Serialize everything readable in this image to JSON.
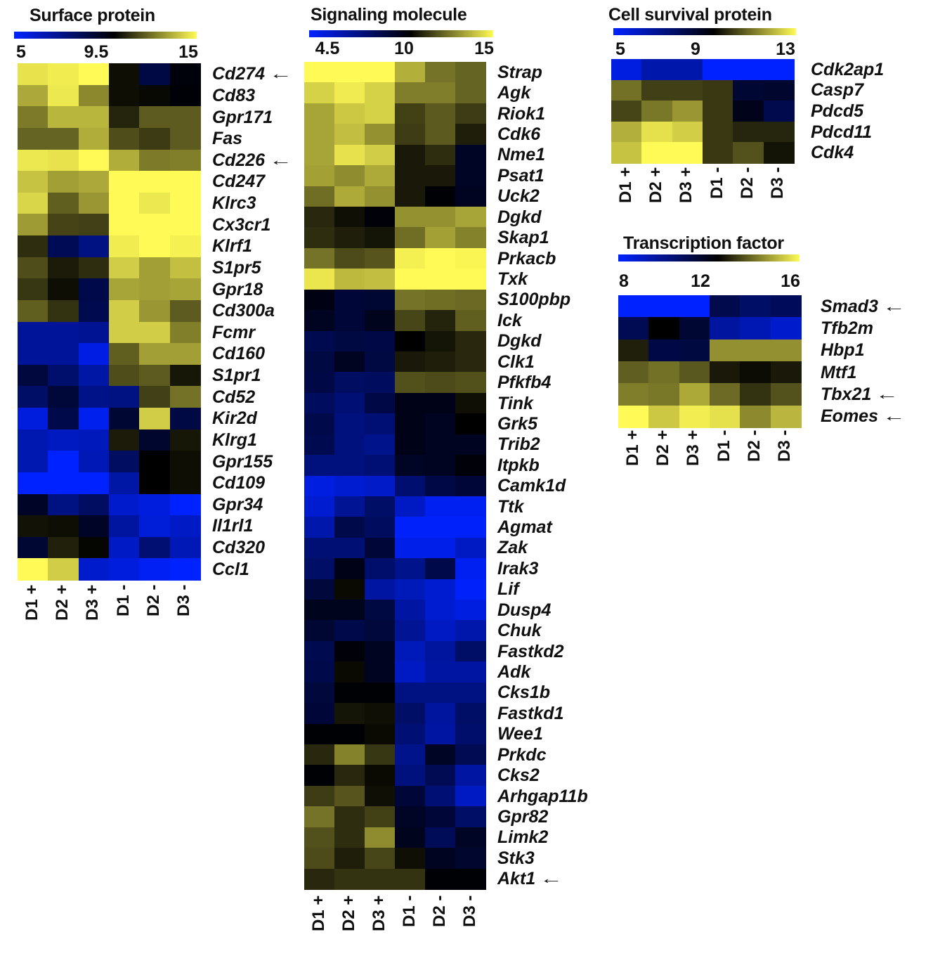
{
  "chart_data": [
    {
      "type": "heatmap",
      "id": "surface",
      "title": "Surface protein",
      "scale": {
        "min": 5,
        "mid": 9.5,
        "max": 15,
        "tick_labels": [
          "5",
          "9.5",
          "15"
        ]
      },
      "columns": [
        "D1 +",
        "D2 +",
        "D3 +",
        "D1 -",
        "D2 -",
        "D3 -"
      ],
      "rows": [
        "Cd274",
        "Cd83",
        "Gpr171",
        "Fas",
        "Cd226",
        "Cd247",
        "Klrc3",
        "Cx3cr1",
        "Klrf1",
        "S1pr5",
        "Gpr18",
        "Cd300a",
        "Fcmr",
        "Cd160",
        "S1pr1",
        "Cd52",
        "Kir2d",
        "Klrg1",
        "Gpr155",
        "Cd109",
        "Gpr34",
        "Il1rl1",
        "Cd320",
        "Ccl1"
      ],
      "arrows": [
        "Cd274",
        "Cd226"
      ],
      "values": [
        [
          14.5,
          14.7,
          15,
          9.8,
          8.3,
          9.3
        ],
        [
          13.2,
          14.6,
          12.5,
          9.8,
          9.7,
          9.4
        ],
        [
          12.2,
          13.5,
          13.5,
          10.3,
          11.5,
          11.5
        ],
        [
          11.7,
          11.7,
          13.3,
          11.2,
          10.8,
          11.5
        ],
        [
          14.6,
          14.5,
          15,
          13.3,
          12.2,
          12.3
        ],
        [
          13.8,
          13,
          13.2,
          15,
          15,
          15
        ],
        [
          14.2,
          11.6,
          12.8,
          15,
          14.6,
          15
        ],
        [
          12.9,
          11,
          10.9,
          15,
          15,
          15
        ],
        [
          10.5,
          8.0,
          7.2,
          14.7,
          15,
          14.8
        ],
        [
          11.2,
          10.1,
          10.5,
          14,
          13,
          13.7
        ],
        [
          10.7,
          9.8,
          8.2,
          13.1,
          13,
          13.1
        ],
        [
          11.6,
          10.6,
          8.1,
          14,
          12.8,
          11.5
        ],
        [
          6.8,
          6.8,
          6.9,
          14,
          14,
          12.3
        ],
        [
          6.8,
          6.8,
          5.5,
          11.6,
          13,
          13
        ],
        [
          8.4,
          7.6,
          6.6,
          11.2,
          11.5,
          10
        ],
        [
          7.7,
          8.5,
          7.1,
          7.2,
          10.9,
          12
        ],
        [
          5.6,
          8.2,
          5.3,
          8.6,
          14,
          8.3
        ],
        [
          6.4,
          6.1,
          6.2,
          10.1,
          8.7,
          10
        ],
        [
          6.4,
          5,
          6.3,
          7.8,
          9.5,
          9.8
        ],
        [
          5,
          5,
          5,
          6.6,
          9.5,
          9.8
        ],
        [
          8.8,
          7.2,
          7.8,
          5.9,
          5.6,
          5
        ],
        [
          9.9,
          9.8,
          8.8,
          6.7,
          5.7,
          6
        ],
        [
          8.6,
          10.2,
          9.6,
          6.0,
          7.5,
          6.3
        ],
        [
          15,
          14,
          5.9,
          5.6,
          5.2,
          5
        ]
      ]
    },
    {
      "type": "heatmap",
      "id": "signaling",
      "title": "Signaling molecule",
      "scale": {
        "min": 4.5,
        "mid": 10,
        "max": 15,
        "tick_labels": [
          "4.5",
          "10",
          "15"
        ]
      },
      "columns": [
        "D1 +",
        "D2 +",
        "D3 +",
        "D1 -",
        "D2 -",
        "D3 -"
      ],
      "rows": [
        "Strap",
        "Agk",
        "Riok1",
        "Cdk6",
        "Nme1",
        "Psat1",
        "Uck2",
        "Dgkd",
        "Skap1",
        "Prkacb",
        "Txk",
        "S100pbp",
        "Ick",
        "Dgkd",
        "Clk1",
        "Pfkfb4",
        "Tink",
        "Grk5",
        "Trib2",
        "Itpkb",
        "Camk1d",
        "Ttk",
        "Agmat",
        "Zak",
        "Irak3",
        "Lif",
        "Dusp4",
        "Chuk",
        "Fastkd2",
        "Adk",
        "Cks1b",
        "Fastkd1",
        "Wee1",
        "Prkdc",
        "Cks2",
        "Arhgap11b",
        "Gpr82",
        "Limk2",
        "Stk3",
        "Akt1"
      ],
      "arrows": [
        "Akt1"
      ],
      "values": [
        [
          15,
          15,
          15,
          13.5,
          12.3,
          12
        ],
        [
          14.2,
          14.7,
          14.2,
          12.5,
          12.5,
          12
        ],
        [
          13.3,
          14,
          14.2,
          11.3,
          11.8,
          11.2
        ],
        [
          13.3,
          13.8,
          12.9,
          11.2,
          11.8,
          10.6
        ],
        [
          13.3,
          14.5,
          14.1,
          10.5,
          10.9,
          9.2
        ],
        [
          13.2,
          12.8,
          13.4,
          10.5,
          10.5,
          9.2
        ],
        [
          12.2,
          13.4,
          12.9,
          10.5,
          9.9,
          9.3
        ],
        [
          10.8,
          10.3,
          9.8,
          12.9,
          12.9,
          13.3
        ],
        [
          10.9,
          10.6,
          10.4,
          12.2,
          13.2,
          12.6
        ],
        [
          12.3,
          11.5,
          11.7,
          14.8,
          15,
          14.9
        ],
        [
          14.6,
          13.7,
          13.8,
          15,
          15,
          15
        ],
        [
          9.6,
          8.8,
          8.9,
          12.3,
          12.2,
          12.1
        ],
        [
          9.3,
          8.8,
          9.4,
          11.4,
          10.7,
          11.9
        ],
        [
          8.3,
          8.6,
          8.5,
          10,
          10.4,
          10.8
        ],
        [
          8.6,
          9.3,
          8.6,
          10.5,
          10.6,
          10.8
        ],
        [
          8.5,
          7.9,
          8.0,
          11.6,
          11.5,
          11.6
        ],
        [
          8.0,
          7.5,
          8.5,
          9.5,
          9.5,
          10.3
        ],
        [
          8.4,
          7.3,
          7.5,
          9.5,
          9.3,
          10
        ],
        [
          8.3,
          7.3,
          7.0,
          9.5,
          9.3,
          9.3
        ],
        [
          7.3,
          7.3,
          7.5,
          9.2,
          9.3,
          9.8
        ],
        [
          5.2,
          5.5,
          5.7,
          7.6,
          8.5,
          8.8
        ],
        [
          5.5,
          6.8,
          7.8,
          5.8,
          4.8,
          4.8
        ],
        [
          6.3,
          8.4,
          8,
          4.6,
          4.6,
          4.6
        ],
        [
          7.5,
          7.5,
          8.8,
          5.0,
          5.0,
          5.8
        ],
        [
          7.8,
          9.5,
          7.7,
          7.0,
          8.4,
          4.8
        ],
        [
          8.7,
          10.2,
          6.5,
          6.0,
          5.5,
          4.6
        ],
        [
          9.4,
          9.4,
          8.6,
          6.5,
          5.5,
          5.2
        ],
        [
          8.9,
          8.4,
          8.7,
          6.8,
          5.8,
          6.3
        ],
        [
          8.3,
          9.8,
          9.3,
          6.0,
          6.6,
          7.8
        ],
        [
          8.4,
          10.2,
          9.3,
          5.8,
          6.5,
          6.5
        ],
        [
          8.7,
          9.9,
          9.9,
          7.2,
          7.2,
          7.2
        ],
        [
          8.8,
          10.4,
          10.3,
          7.8,
          6.6,
          7.8
        ],
        [
          9.9,
          9.9,
          10.2,
          7.5,
          6.5,
          7.7
        ],
        [
          10.8,
          12.6,
          11.1,
          7.0,
          9.2,
          8.2
        ],
        [
          9.9,
          10.8,
          10.2,
          7.3,
          8.2,
          6.5
        ],
        [
          11.2,
          11.7,
          10.3,
          8.8,
          7.5,
          5.8
        ],
        [
          12.3,
          10.9,
          11.3,
          9.2,
          8.8,
          7.8
        ],
        [
          11.6,
          10.9,
          12.8,
          9.4,
          8.1,
          9.2
        ],
        [
          11.5,
          10.6,
          11.4,
          10.3,
          9.3,
          9.0
        ],
        [
          10.8,
          11.0,
          11.0,
          11.0,
          9.9,
          9.9
        ]
      ]
    },
    {
      "type": "heatmap",
      "id": "survival",
      "title": "Cell survival protein",
      "scale": {
        "min": 5,
        "mid": 9,
        "max": 13,
        "tick_labels": [
          "5",
          "9",
          "13"
        ]
      },
      "columns": [
        "D1 +",
        "D2 +",
        "D3 +",
        "D1 -",
        "D2 -",
        "D3 -"
      ],
      "rows": [
        "Cdk2ap1",
        "Casp7",
        "Pdcd5",
        "Pdcd11",
        "Cdk4"
      ],
      "arrows": [],
      "values": [
        [
          5.5,
          6.3,
          6.3,
          5,
          5,
          5
        ],
        [
          10.8,
          10.0,
          10.0,
          9.9,
          8.2,
          8.3
        ],
        [
          10.1,
          10.9,
          11.4,
          9.9,
          8.6,
          7.8
        ],
        [
          11.8,
          12.6,
          12.3,
          9.9,
          9.6,
          9.6
        ],
        [
          12.1,
          13,
          13,
          9.9,
          10.3,
          9.3
        ]
      ]
    },
    {
      "type": "heatmap",
      "id": "tf",
      "title": "Transcription factor",
      "scale": {
        "min": 8,
        "mid": 12,
        "max": 16,
        "tick_labels": [
          "8",
          "12",
          "16"
        ]
      },
      "columns": [
        "D1 +",
        "D2 +",
        "D3 +",
        "D1 -",
        "D2 -",
        "D3 -"
      ],
      "rows": [
        "Smad3",
        "Tfb2m",
        "Hbp1",
        "Mtf1",
        "Tbx21",
        "Eomes"
      ],
      "arrows": [
        "Smad3",
        "Tbx21",
        "Eomes"
      ],
      "values": [
        [
          8,
          8,
          8,
          10.8,
          10.4,
          10.6
        ],
        [
          10.7,
          12,
          11.2,
          9.5,
          9.2,
          8.8
        ],
        [
          12.5,
          10.9,
          11.0,
          14.3,
          14.3,
          14.3
        ],
        [
          13.5,
          13.8,
          13.4,
          12.4,
          12.2,
          12.4
        ],
        [
          14,
          13.9,
          14.7,
          13.7,
          12.8,
          13.3
        ],
        [
          16,
          15.2,
          15.8,
          15.6,
          14.2,
          14.9
        ]
      ]
    }
  ],
  "colors": {
    "low": "#0022ff",
    "mid": "#000000",
    "high": "#fffa55"
  },
  "arrow_glyph": "←"
}
